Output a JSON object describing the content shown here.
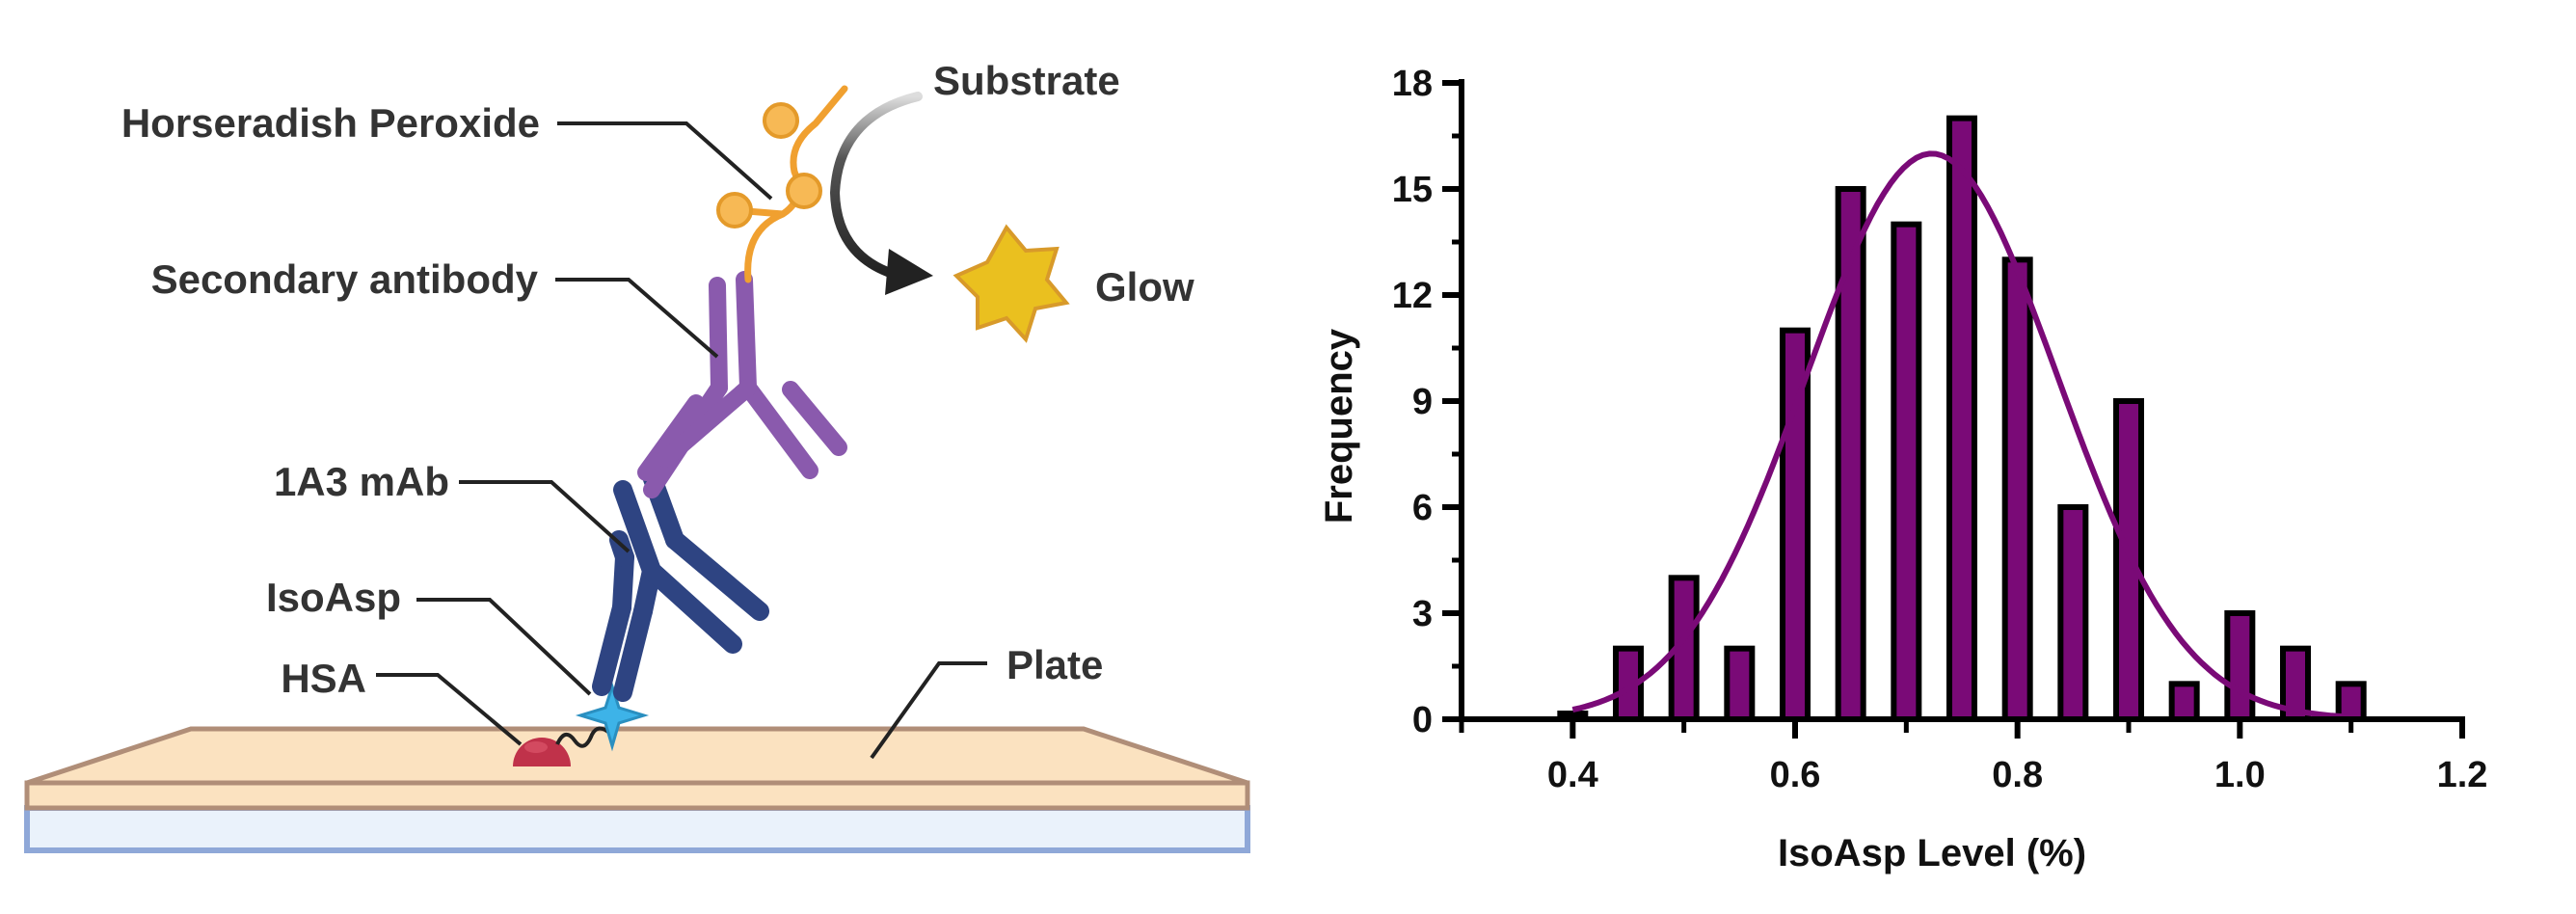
{
  "diagram": {
    "labels": {
      "hrp": "Horseradish Peroxide",
      "substrate": "Substrate",
      "secondary": "Secondary antibody",
      "glow": "Glow",
      "mab": "1A3 mAb",
      "isoasp": "IsoAsp",
      "hsa": "HSA",
      "plate": "Plate"
    },
    "colors": {
      "hrp": "#f0a030",
      "secondary": "#8a5aad",
      "mab": "#2e4482",
      "isoasp": "#3db3e8",
      "hsa": "#c0324a",
      "glow": "#eac01f",
      "plate_top": "#fbe2c0",
      "plate_bottom": "#eaf2fb"
    }
  },
  "chart_data": {
    "type": "bar",
    "title": "",
    "xlabel": "IsoAsp Level (%)",
    "ylabel": "Frequency",
    "xlim": [
      0.3,
      1.2
    ],
    "ylim": [
      0,
      18
    ],
    "xticks": [
      "0.4",
      "0.6",
      "0.8",
      "1.0",
      "1.2"
    ],
    "yticks": [
      "0",
      "3",
      "6",
      "9",
      "12",
      "15",
      "18"
    ],
    "bar_color": "#7a0a77",
    "curve_color": "#7a0a77",
    "bins": [
      {
        "x": 0.4,
        "count": 0
      },
      {
        "x": 0.45,
        "count": 2
      },
      {
        "x": 0.5,
        "count": 4
      },
      {
        "x": 0.55,
        "count": 2
      },
      {
        "x": 0.6,
        "count": 11
      },
      {
        "x": 0.65,
        "count": 15
      },
      {
        "x": 0.7,
        "count": 14
      },
      {
        "x": 0.75,
        "count": 17
      },
      {
        "x": 0.8,
        "count": 13
      },
      {
        "x": 0.85,
        "count": 6
      },
      {
        "x": 0.9,
        "count": 9
      },
      {
        "x": 0.95,
        "count": 1
      },
      {
        "x": 1.0,
        "count": 3
      },
      {
        "x": 1.05,
        "count": 2
      },
      {
        "x": 1.1,
        "count": 1
      }
    ],
    "fit": {
      "type": "gaussian",
      "mean": 0.723,
      "sd": 0.113,
      "amplitude": 16.0,
      "x_range": [
        0.4,
        1.1
      ]
    }
  }
}
